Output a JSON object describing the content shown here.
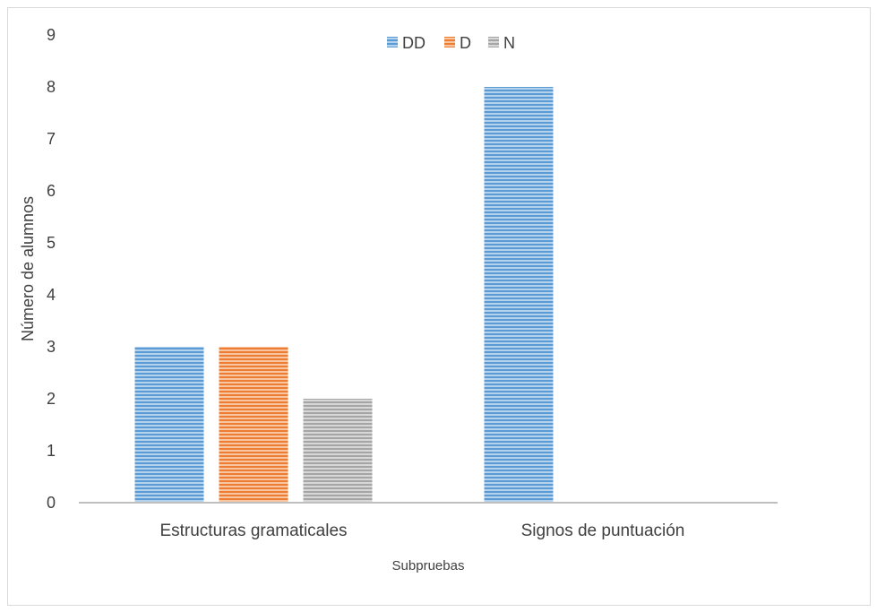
{
  "chart_data": {
    "type": "bar",
    "categories": [
      "Estructuras gramaticales",
      "Signos de puntuación"
    ],
    "series": [
      {
        "name": "DD",
        "values": [
          3,
          8
        ],
        "color": "#5b9bd5"
      },
      {
        "name": "D",
        "values": [
          3,
          0
        ],
        "color": "#ed7d31"
      },
      {
        "name": "N",
        "values": [
          2,
          0
        ],
        "color": "#a5a5a5"
      }
    ],
    "title": "",
    "xlabel": "Subpruebas",
    "ylabel": "Número de alumnos",
    "ylim": [
      0,
      9
    ],
    "yticks": [
      0,
      1,
      2,
      3,
      4,
      5,
      6,
      7,
      8,
      9
    ],
    "grid": false,
    "legend_position": "top",
    "bar_style": "horizontal-stripes"
  }
}
